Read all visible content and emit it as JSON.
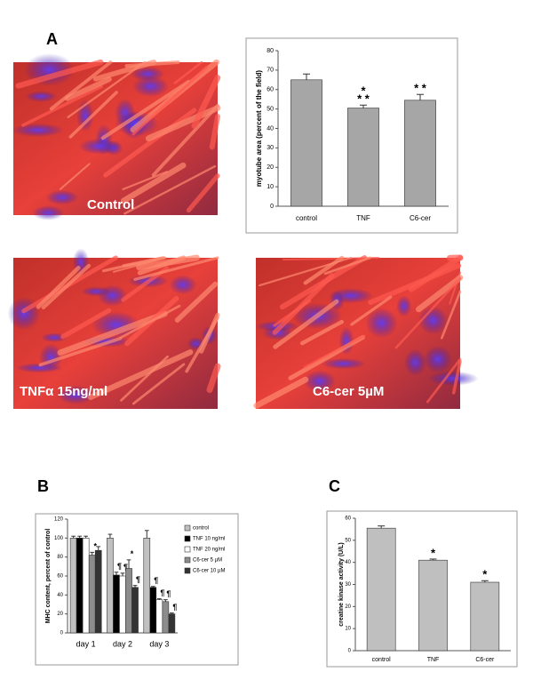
{
  "panel_labels": [
    "A",
    "B",
    "C"
  ],
  "images": [
    {
      "caption": "Control"
    },
    {
      "caption": "TNFα 15ng/ml"
    },
    {
      "caption": "C6-cer 5µM"
    }
  ],
  "chart_data": [
    {
      "type": "bar",
      "ylabel": "myotube area (percent of the field)",
      "categories": [
        "control",
        "TNF",
        "C6-cer"
      ],
      "values": [
        65,
        50.5,
        54.5
      ],
      "errors": [
        3,
        1.5,
        3
      ],
      "annotations": [
        [],
        [
          "* *",
          "*"
        ],
        [
          "* *"
        ]
      ],
      "color": "#a6a6a6",
      "ylim": [
        0,
        80
      ],
      "yticks": [
        0,
        10,
        20,
        30,
        40,
        50,
        60,
        70,
        80
      ]
    },
    {
      "type": "grouped-bar",
      "ylabel": "MHC content, percent of control",
      "categories": [
        "day 1",
        "day 2",
        "day 3"
      ],
      "series": [
        {
          "name": "control",
          "color": "#c0c0c0",
          "values": [
            100,
            100,
            100
          ],
          "errors": [
            2,
            4,
            8
          ],
          "annotations": [
            null,
            null,
            null
          ]
        },
        {
          "name": "TNF 10 ng/ml",
          "color": "#000000",
          "values": [
            100,
            61,
            48
          ],
          "errors": [
            2,
            3,
            1
          ],
          "annotations": [
            null,
            "¶",
            "¶"
          ]
        },
        {
          "name": "TNF 20 ng/ml",
          "color": "#ffffff",
          "values": [
            100,
            60,
            35
          ],
          "errors": [
            2,
            3,
            1
          ],
          "annotations": [
            null,
            "¶",
            "¶"
          ]
        },
        {
          "name": "C6-cer 5 µM",
          "color": "#8c8c8c",
          "values": [
            82,
            68,
            33
          ],
          "errors": [
            3,
            9,
            2
          ],
          "annotations": [
            "*",
            "*",
            "¶"
          ]
        },
        {
          "name": "C6-cer 10 µM",
          "color": "#333333",
          "values": [
            87,
            48,
            20
          ],
          "errors": [
            4,
            2,
            1
          ],
          "annotations": [
            null,
            "¶",
            "¶"
          ]
        }
      ],
      "ylim": [
        0,
        120
      ],
      "yticks": [
        0,
        20,
        40,
        60,
        80,
        100,
        120
      ]
    },
    {
      "type": "bar",
      "ylabel": "creatine kinase activity (U/L)",
      "categories": [
        "control",
        "TNF",
        "C6-cer"
      ],
      "values": [
        55.5,
        41,
        31
      ],
      "errors": [
        1,
        0.5,
        0.7
      ],
      "annotations": [
        [],
        [
          "*"
        ],
        [
          "*"
        ]
      ],
      "color": "#bfbfbf",
      "ylim": [
        0,
        60
      ],
      "yticks": [
        0,
        10,
        20,
        30,
        40,
        50,
        60
      ]
    }
  ]
}
